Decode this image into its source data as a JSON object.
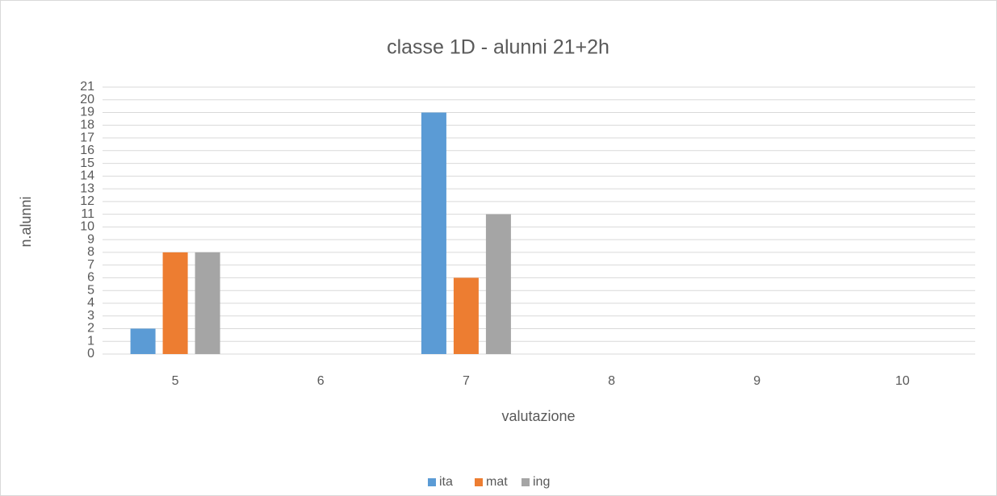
{
  "chart_data": {
    "type": "bar",
    "title": "classe 1D - alunni 21+2h",
    "x_label": "valutazione",
    "y_label": "n.alunni",
    "categories": [
      "5",
      "6",
      "7",
      "8",
      "9",
      "10"
    ],
    "series": [
      {
        "name": "ita",
        "color": "#5b9bd5",
        "values": [
          2,
          0,
          19,
          0,
          0,
          0
        ]
      },
      {
        "name": "mat",
        "color": "#ed7d31",
        "values": [
          8,
          0,
          6,
          0,
          0,
          0
        ]
      },
      {
        "name": "ing",
        "color": "#a5a5a5",
        "values": [
          8,
          0,
          11,
          0,
          0,
          0
        ]
      }
    ],
    "ylim": [
      0,
      21
    ],
    "yticks": [
      0,
      1,
      2,
      3,
      4,
      5,
      6,
      7,
      8,
      9,
      10,
      11,
      12,
      13,
      14,
      15,
      16,
      17,
      18,
      19,
      20,
      21
    ],
    "grid": true,
    "legend": "bottom"
  }
}
